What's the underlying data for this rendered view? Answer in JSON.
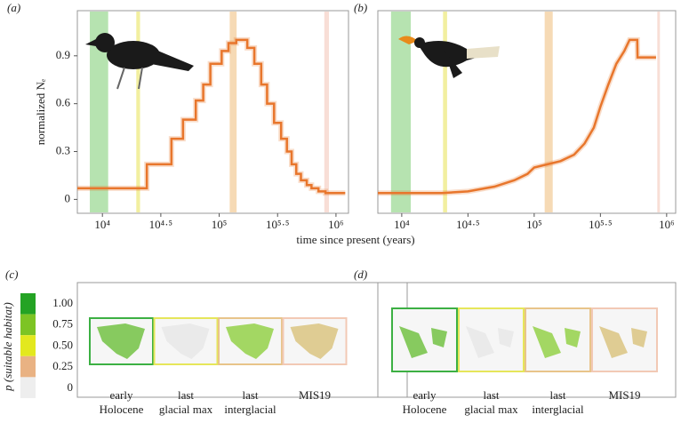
{
  "chart_data": [
    {
      "type": "line",
      "panel": "(a)",
      "ylabel": "normalized Nₑ",
      "xscale": "log",
      "step": true,
      "xlim": [
        6100,
        1280000
      ],
      "xticks": [
        {
          "value": 10000,
          "label": "10⁴"
        },
        {
          "value": 31623,
          "label": "10⁴·⁵"
        },
        {
          "value": 100000,
          "label": "10⁵"
        },
        {
          "value": 316228,
          "label": "10⁵·⁵"
        },
        {
          "value": 1000000,
          "label": "10⁶"
        }
      ],
      "ylim": [
        -0.087,
        1.183
      ],
      "yticks": [
        0,
        0.3,
        0.6,
        0.9
      ],
      "spans": [
        {
          "range": [
            7800,
            11200
          ],
          "color": "#b6e3b0"
        },
        {
          "range": [
            19500,
            21000
          ],
          "color": "#f2efa0"
        },
        {
          "range": [
            123000,
            141000
          ],
          "color": "#f6dab5"
        },
        {
          "range": [
            794000,
            871000
          ],
          "color": "#f8ded6"
        }
      ],
      "x": [
        6100,
        24000,
        39000,
        49000,
        63000,
        73000,
        84000,
        105000,
        120000,
        140000,
        174000,
        200000,
        229000,
        257000,
        295000,
        339000,
        380000,
        417000,
        457000,
        501000,
        562000,
        617000,
        708000,
        813000,
        1200000
      ],
      "series": [
        {
          "color": "#e8762c",
          "values": [
            0.07,
            0.22,
            0.38,
            0.5,
            0.62,
            0.72,
            0.85,
            0.93,
            0.98,
            1.0,
            0.95,
            0.85,
            0.72,
            0.6,
            0.48,
            0.38,
            0.3,
            0.22,
            0.16,
            0.12,
            0.09,
            0.07,
            0.05,
            0.04,
            0.04
          ]
        }
      ]
    },
    {
      "type": "line",
      "panel": "(b)",
      "xscale": "log",
      "step": false,
      "xlim": [
        6600,
        1170000
      ],
      "xticks": [
        {
          "value": 10000,
          "label": "10⁴"
        },
        {
          "value": 31623,
          "label": "10⁴·⁵"
        },
        {
          "value": 100000,
          "label": "10⁵"
        },
        {
          "value": 316228,
          "label": "10⁵·⁵"
        },
        {
          "value": 1000000,
          "label": "10⁶"
        }
      ],
      "ylim": [
        -0.087,
        1.183
      ],
      "spans": [
        {
          "range": [
            8300,
            11700
          ],
          "color": "#b6e3b0"
        },
        {
          "range": [
            20500,
            22000
          ],
          "color": "#f2efa0"
        },
        {
          "range": [
            120000,
            138000
          ],
          "color": "#f6dab5"
        },
        {
          "range": [
            850000,
            890000
          ],
          "color": "#f8ded6"
        }
      ],
      "x": [
        6600,
        20000,
        31600,
        50100,
        70800,
        89100,
        100000,
        126000,
        158000,
        200000,
        240000,
        282000,
        316000,
        363000,
        417000,
        479000,
        525000,
        600000,
        603000,
        832000
      ],
      "series": [
        {
          "color": "#e8762c",
          "values": [
            0.04,
            0.04,
            0.05,
            0.08,
            0.12,
            0.16,
            0.2,
            0.22,
            0.24,
            0.28,
            0.35,
            0.45,
            0.58,
            0.72,
            0.85,
            0.93,
            1.0,
            1.0,
            0.89,
            0.89
          ]
        }
      ]
    }
  ],
  "x_axis_label": "time since present (years)",
  "habitat": {
    "colorbar": {
      "label": "p (suitable habitat)",
      "colors": [
        "#24a324",
        "#7dc424",
        "#e3e81e",
        "#e9b283",
        "#eeeeee"
      ],
      "ticks": [
        {
          "value": 1,
          "label": "1.00"
        },
        {
          "value": 0.75,
          "label": "0.75"
        },
        {
          "value": 0.5,
          "label": "0.50"
        },
        {
          "value": 0.25,
          "label": "0.25"
        },
        0
      ]
    },
    "panels": [
      {
        "panel": "(c)",
        "maps": [
          {
            "label": [
              "early",
              "Holocene"
            ],
            "color": "#3cb043"
          },
          {
            "label": [
              "last",
              "glacial max"
            ],
            "color": "#e6e65a"
          },
          {
            "label": [
              "last",
              "interglacial"
            ],
            "color": "#e8c48a"
          },
          {
            "label": [
              "MIS19"
            ],
            "color": "#f2c9b5"
          }
        ]
      },
      {
        "panel": "(d)",
        "maps": [
          {
            "label": [
              "early",
              "Holocene"
            ],
            "color": "#3cb043"
          },
          {
            "label": [
              "last",
              "glacial max"
            ],
            "color": "#e6e65a"
          },
          {
            "label": [
              "last",
              "interglacial"
            ],
            "color": "#e8c48a"
          },
          {
            "label": [
              "MIS19"
            ],
            "color": "#f2c9b5"
          }
        ]
      }
    ]
  }
}
